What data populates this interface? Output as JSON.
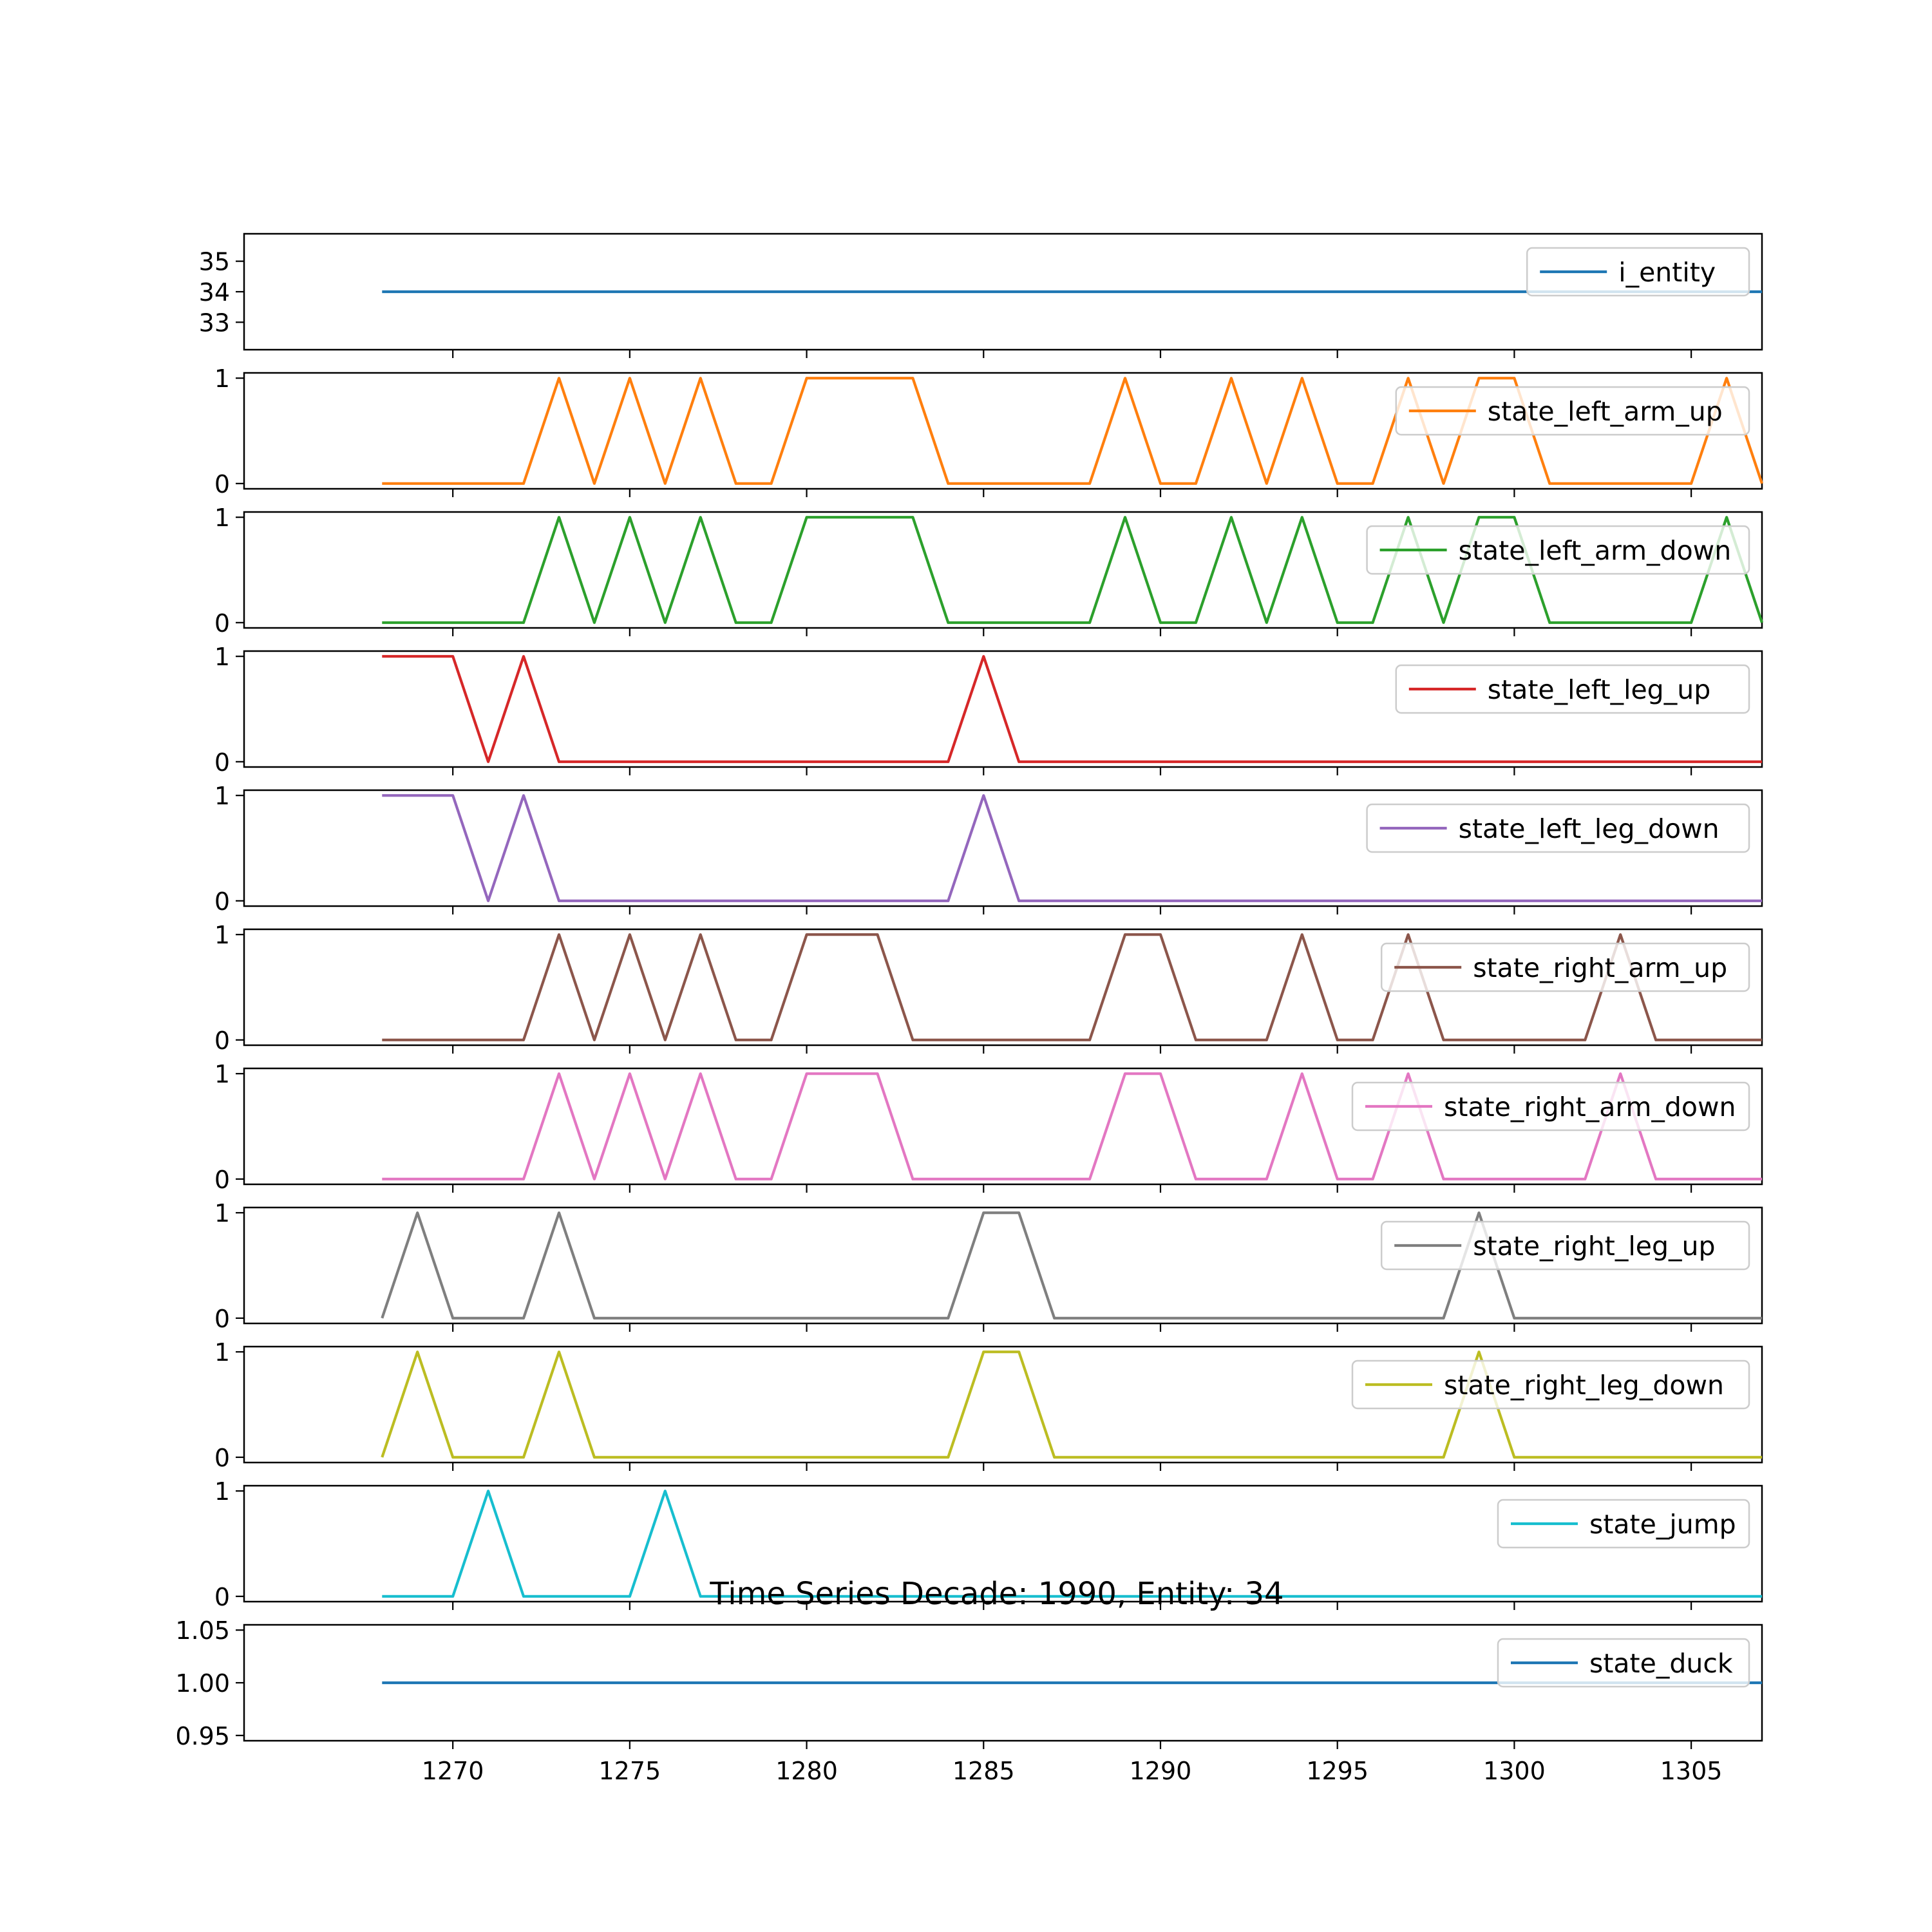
{
  "chart_data": {
    "type": "line",
    "title": "Time Series Decade: 1990, Entity: 34",
    "xlabel": "",
    "x_start": 1268,
    "x_end": 1307,
    "xlim": [
      1264.1,
      1307.0
    ],
    "x_ticks": [
      1270,
      1275,
      1280,
      1285,
      1290,
      1295,
      1300,
      1305
    ],
    "grid": false,
    "legend_placement": "upper right",
    "panels": [
      {
        "name": "i_entity",
        "color": "#1f77b4",
        "ylim": [
          32.1,
          35.9
        ],
        "yticks": [
          33,
          34,
          35
        ],
        "ytick_labels": [
          "33",
          "34",
          "35"
        ],
        "values": [
          34,
          34,
          34,
          34,
          34,
          34,
          34,
          34,
          34,
          34,
          34,
          34,
          34,
          34,
          34,
          34,
          34,
          34,
          34,
          34,
          34,
          34,
          34,
          34,
          34,
          34,
          34,
          34,
          34,
          34,
          34,
          34,
          34,
          34,
          34,
          34,
          34,
          34,
          34,
          34
        ]
      },
      {
        "name": "state_left_arm_up",
        "color": "#ff7f0e",
        "ylim": [
          -0.05,
          1.05
        ],
        "yticks": [
          0,
          1
        ],
        "ytick_labels": [
          "0",
          "1"
        ],
        "values": [
          0,
          0,
          0,
          0,
          0,
          1,
          0,
          1,
          0,
          1,
          0,
          0,
          1,
          1,
          1,
          1,
          0,
          0,
          0,
          0,
          0,
          1,
          0,
          0,
          1,
          0,
          1,
          0,
          0,
          1,
          0,
          1,
          1,
          0,
          0,
          0,
          0,
          0,
          1,
          0
        ]
      },
      {
        "name": "state_left_arm_down",
        "color": "#2ca02c",
        "ylim": [
          -0.05,
          1.05
        ],
        "yticks": [
          0,
          1
        ],
        "ytick_labels": [
          "0",
          "1"
        ],
        "values": [
          0,
          0,
          0,
          0,
          0,
          1,
          0,
          1,
          0,
          1,
          0,
          0,
          1,
          1,
          1,
          1,
          0,
          0,
          0,
          0,
          0,
          1,
          0,
          0,
          1,
          0,
          1,
          0,
          0,
          1,
          0,
          1,
          1,
          0,
          0,
          0,
          0,
          0,
          1,
          0
        ]
      },
      {
        "name": "state_left_leg_up",
        "color": "#d62728",
        "ylim": [
          -0.05,
          1.05
        ],
        "yticks": [
          0,
          1
        ],
        "ytick_labels": [
          "0",
          "1"
        ],
        "values": [
          1,
          1,
          1,
          0,
          1,
          0,
          0,
          0,
          0,
          0,
          0,
          0,
          0,
          0,
          0,
          0,
          0,
          1,
          0,
          0,
          0,
          0,
          0,
          0,
          0,
          0,
          0,
          0,
          0,
          0,
          0,
          0,
          0,
          0,
          0,
          0,
          0,
          0,
          0,
          0
        ]
      },
      {
        "name": "state_left_leg_down",
        "color": "#9467bd",
        "ylim": [
          -0.05,
          1.05
        ],
        "yticks": [
          0,
          1
        ],
        "ytick_labels": [
          "0",
          "1"
        ],
        "values": [
          1,
          1,
          1,
          0,
          1,
          0,
          0,
          0,
          0,
          0,
          0,
          0,
          0,
          0,
          0,
          0,
          0,
          1,
          0,
          0,
          0,
          0,
          0,
          0,
          0,
          0,
          0,
          0,
          0,
          0,
          0,
          0,
          0,
          0,
          0,
          0,
          0,
          0,
          0,
          0
        ]
      },
      {
        "name": "state_right_arm_up",
        "color": "#8c564b",
        "ylim": [
          -0.05,
          1.05
        ],
        "yticks": [
          0,
          1
        ],
        "ytick_labels": [
          "0",
          "1"
        ],
        "values": [
          0,
          0,
          0,
          0,
          0,
          1,
          0,
          1,
          0,
          1,
          0,
          0,
          1,
          1,
          1,
          0,
          0,
          0,
          0,
          0,
          0,
          1,
          1,
          0,
          0,
          0,
          1,
          0,
          0,
          1,
          0,
          0,
          0,
          0,
          0,
          1,
          0,
          0,
          0,
          0
        ]
      },
      {
        "name": "state_right_arm_down",
        "color": "#e377c2",
        "ylim": [
          -0.05,
          1.05
        ],
        "yticks": [
          0,
          1
        ],
        "ytick_labels": [
          "0",
          "1"
        ],
        "values": [
          0,
          0,
          0,
          0,
          0,
          1,
          0,
          1,
          0,
          1,
          0,
          0,
          1,
          1,
          1,
          0,
          0,
          0,
          0,
          0,
          0,
          1,
          1,
          0,
          0,
          0,
          1,
          0,
          0,
          1,
          0,
          0,
          0,
          0,
          0,
          1,
          0,
          0,
          0,
          0
        ]
      },
      {
        "name": "state_right_leg_up",
        "color": "#7f7f7f",
        "ylim": [
          -0.05,
          1.05
        ],
        "yticks": [
          0,
          1
        ],
        "ytick_labels": [
          "0",
          "1"
        ],
        "values": [
          0,
          1,
          0,
          0,
          0,
          1,
          0,
          0,
          0,
          0,
          0,
          0,
          0,
          0,
          0,
          0,
          0,
          1,
          1,
          0,
          0,
          0,
          0,
          0,
          0,
          0,
          0,
          0,
          0,
          0,
          0,
          1,
          0,
          0,
          0,
          0,
          0,
          0,
          0,
          0
        ]
      },
      {
        "name": "state_right_leg_down",
        "color": "#bcbd22",
        "ylim": [
          -0.05,
          1.05
        ],
        "yticks": [
          0,
          1
        ],
        "ytick_labels": [
          "0",
          "1"
        ],
        "values": [
          0,
          1,
          0,
          0,
          0,
          1,
          0,
          0,
          0,
          0,
          0,
          0,
          0,
          0,
          0,
          0,
          0,
          1,
          1,
          0,
          0,
          0,
          0,
          0,
          0,
          0,
          0,
          0,
          0,
          0,
          0,
          1,
          0,
          0,
          0,
          0,
          0,
          0,
          0,
          0
        ]
      },
      {
        "name": "state_jump",
        "color": "#17becf",
        "ylim": [
          -0.05,
          1.05
        ],
        "yticks": [
          0,
          1
        ],
        "ytick_labels": [
          "0",
          "1"
        ],
        "values": [
          0,
          0,
          0,
          1,
          0,
          0,
          0,
          0,
          1,
          0,
          0,
          0,
          0,
          0,
          0,
          0,
          0,
          0,
          0,
          0,
          0,
          0,
          0,
          0,
          0,
          0,
          0,
          0,
          0,
          0,
          0,
          0,
          0,
          0,
          0,
          0,
          0,
          0,
          0,
          0
        ]
      },
      {
        "name": "state_duck",
        "color": "#1f77b4",
        "ylim": [
          0.945,
          1.055
        ],
        "yticks": [
          0.95,
          1.0,
          1.05
        ],
        "ytick_labels": [
          "0.95",
          "1.00",
          "1.05"
        ],
        "values": [
          1,
          1,
          1,
          1,
          1,
          1,
          1,
          1,
          1,
          1,
          1,
          1,
          1,
          1,
          1,
          1,
          1,
          1,
          1,
          1,
          1,
          1,
          1,
          1,
          1,
          1,
          1,
          1,
          1,
          1,
          1,
          1,
          1,
          1,
          1,
          1,
          1,
          1,
          1,
          1
        ]
      }
    ]
  }
}
